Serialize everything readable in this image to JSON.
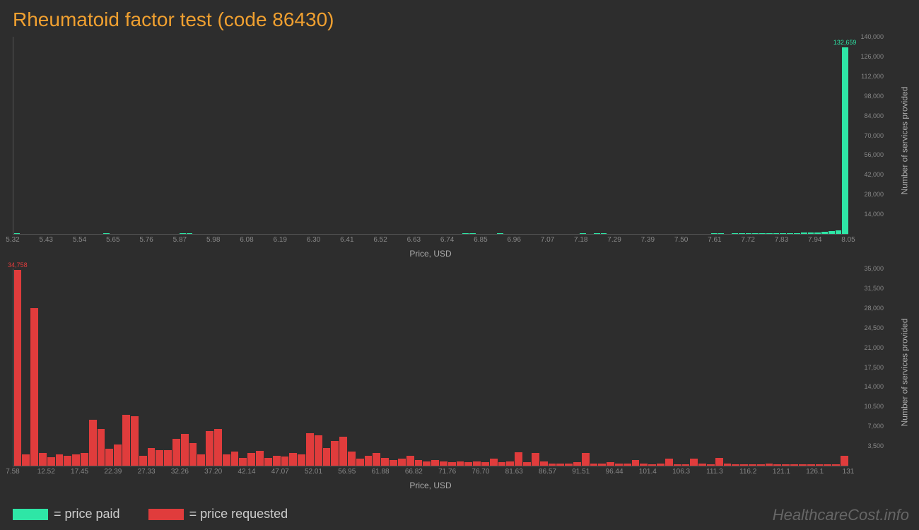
{
  "title": "Rheumatoid factor test (code 86430)",
  "watermark": "HealthcareCost.info",
  "axis_labels": {
    "x": "Price, USD",
    "y": "Number of services provided"
  },
  "legend": {
    "paid": "= price paid",
    "requested": "= price requested"
  },
  "colors": {
    "paid": "#2ee6a6",
    "requested": "#e03c3c",
    "paid_label": "#2ee6a6",
    "requested_label": "#e03c3c",
    "background": "#2d2d2d",
    "axis": "#555555",
    "tick_text": "#888888",
    "label_text": "#aaaaaa",
    "title": "#f0a030"
  },
  "chart_paid": {
    "type": "bar",
    "peak_label": "132,659",
    "x_ticks": [
      "5.32",
      "5.43",
      "5.54",
      "5.65",
      "5.76",
      "5.87",
      "5.98",
      "6.08",
      "6.19",
      "6.30",
      "6.41",
      "6.52",
      "6.63",
      "6.74",
      "6.85",
      "6.96",
      "7.07",
      "7.18",
      "7.29",
      "7.39",
      "7.50",
      "7.61",
      "7.72",
      "7.83",
      "7.94",
      "8.05"
    ],
    "y_ticks": [
      "14,000",
      "28,000",
      "42,000",
      "56,000",
      "70,000",
      "84,000",
      "98,000",
      "112,000",
      "126,000",
      "140,000"
    ],
    "y_max": 140000,
    "values": [
      300,
      0,
      0,
      0,
      0,
      0,
      0,
      0,
      0,
      0,
      0,
      0,
      0,
      400,
      0,
      0,
      0,
      0,
      0,
      0,
      0,
      0,
      0,
      0,
      300,
      300,
      0,
      0,
      0,
      0,
      0,
      0,
      0,
      0,
      0,
      0,
      0,
      0,
      0,
      0,
      0,
      0,
      0,
      0,
      0,
      0,
      0,
      0,
      0,
      0,
      0,
      0,
      0,
      0,
      0,
      0,
      0,
      0,
      0,
      0,
      0,
      0,
      0,
      0,
      0,
      400,
      300,
      0,
      0,
      0,
      300,
      0,
      0,
      0,
      0,
      0,
      0,
      0,
      0,
      0,
      0,
      0,
      300,
      0,
      400,
      300,
      0,
      0,
      0,
      0,
      0,
      0,
      0,
      0,
      0,
      0,
      0,
      0,
      0,
      0,
      0,
      400,
      300,
      0,
      300,
      400,
      300,
      400,
      300,
      400,
      400,
      500,
      600,
      700,
      800,
      1000,
      1200,
      1500,
      2000,
      2500,
      132659
    ]
  },
  "chart_requested": {
    "type": "bar",
    "peak_label": "34,758",
    "x_ticks": [
      "7.58",
      "12.52",
      "17.45",
      "22.39",
      "27.33",
      "32.26",
      "37.20",
      "42.14",
      "47.07",
      "52.01",
      "56.95",
      "61.88",
      "66.82",
      "71.76",
      "76.70",
      "81.63",
      "86.57",
      "91.51",
      "96.44",
      "101.4",
      "106.3",
      "111.3",
      "116.2",
      "121.1",
      "126.1",
      "131"
    ],
    "y_ticks": [
      "3,500",
      "7,000",
      "10,500",
      "14,000",
      "17,500",
      "21,000",
      "24,500",
      "28,000",
      "31,500",
      "35,000"
    ],
    "y_max": 35000,
    "values": [
      34758,
      2000,
      28000,
      2200,
      1500,
      2000,
      1800,
      2000,
      2200,
      8200,
      6500,
      3000,
      3800,
      9000,
      8800,
      1800,
      3200,
      2800,
      2800,
      4800,
      5600,
      4000,
      2000,
      6200,
      6500,
      2000,
      2500,
      1400,
      2200,
      2600,
      1400,
      1800,
      1600,
      2200,
      2000,
      5800,
      5400,
      3200,
      4400,
      5200,
      2500,
      1200,
      1800,
      2200,
      1400,
      1000,
      1200,
      1800,
      1000,
      800,
      1000,
      800,
      600,
      800,
      600,
      800,
      600,
      1200,
      600,
      800,
      2400,
      600,
      2200,
      800,
      400,
      400,
      400,
      600,
      2200,
      400,
      400,
      600,
      400,
      400,
      1000,
      400,
      300,
      400,
      1200,
      300,
      300,
      1200,
      400,
      300,
      1400,
      400,
      300,
      300,
      300,
      300,
      400,
      300,
      300,
      300,
      300,
      300,
      300,
      300,
      300,
      1800
    ]
  }
}
